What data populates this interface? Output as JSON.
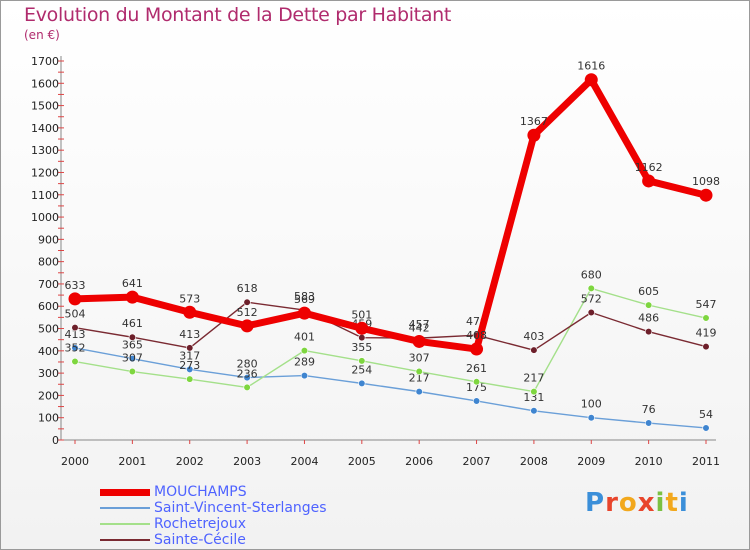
{
  "title": "Evolution du Montant de la Dette par Habitant",
  "subtitle": "(en €)",
  "logo": "Proxiti",
  "chart_data": {
    "type": "line",
    "x": [
      "2000",
      "2001",
      "2002",
      "2003",
      "2004",
      "2005",
      "2006",
      "2007",
      "2008",
      "2009",
      "2010",
      "2011"
    ],
    "ylim": [
      0,
      1700
    ],
    "yticks": [
      0,
      100,
      200,
      300,
      400,
      500,
      600,
      700,
      800,
      900,
      1000,
      1100,
      1200,
      1300,
      1400,
      1500,
      1600,
      1700
    ],
    "grid": false,
    "legend_position": "bottom-left",
    "series": [
      {
        "name": "Saint-Vincent-Sterlanges",
        "color": "#6a9fd8",
        "point_color": "#3f85d0",
        "width": 1.4,
        "values": [
          413,
          365,
          317,
          280,
          289,
          254,
          217,
          175,
          131,
          100,
          76,
          54
        ]
      },
      {
        "name": "Rochetrejoux",
        "color": "#a4e08a",
        "point_color": "#7ed63f",
        "width": 1.4,
        "values": [
          352,
          307,
          273,
          236,
          401,
          355,
          307,
          261,
          217,
          680,
          605,
          547
        ]
      },
      {
        "name": "Sainte-Cécile",
        "color": "#7a2a32",
        "point_color": "#6d1f2a",
        "width": 1.4,
        "values": [
          504,
          461,
          413,
          618,
          583,
          459,
          457,
          470,
          403,
          572,
          486,
          419
        ]
      },
      {
        "name": "MOUCHAMPS",
        "color": "#ee0000",
        "point_color": "#ee0000",
        "width": 7,
        "values": [
          633,
          641,
          573,
          512,
          569,
          501,
          442,
          408,
          1367,
          1616,
          1162,
          1098
        ]
      }
    ],
    "legend_order": [
      "MOUCHAMPS",
      "Saint-Vincent-Sterlanges",
      "Rochetrejoux",
      "Sainte-Cécile"
    ]
  }
}
